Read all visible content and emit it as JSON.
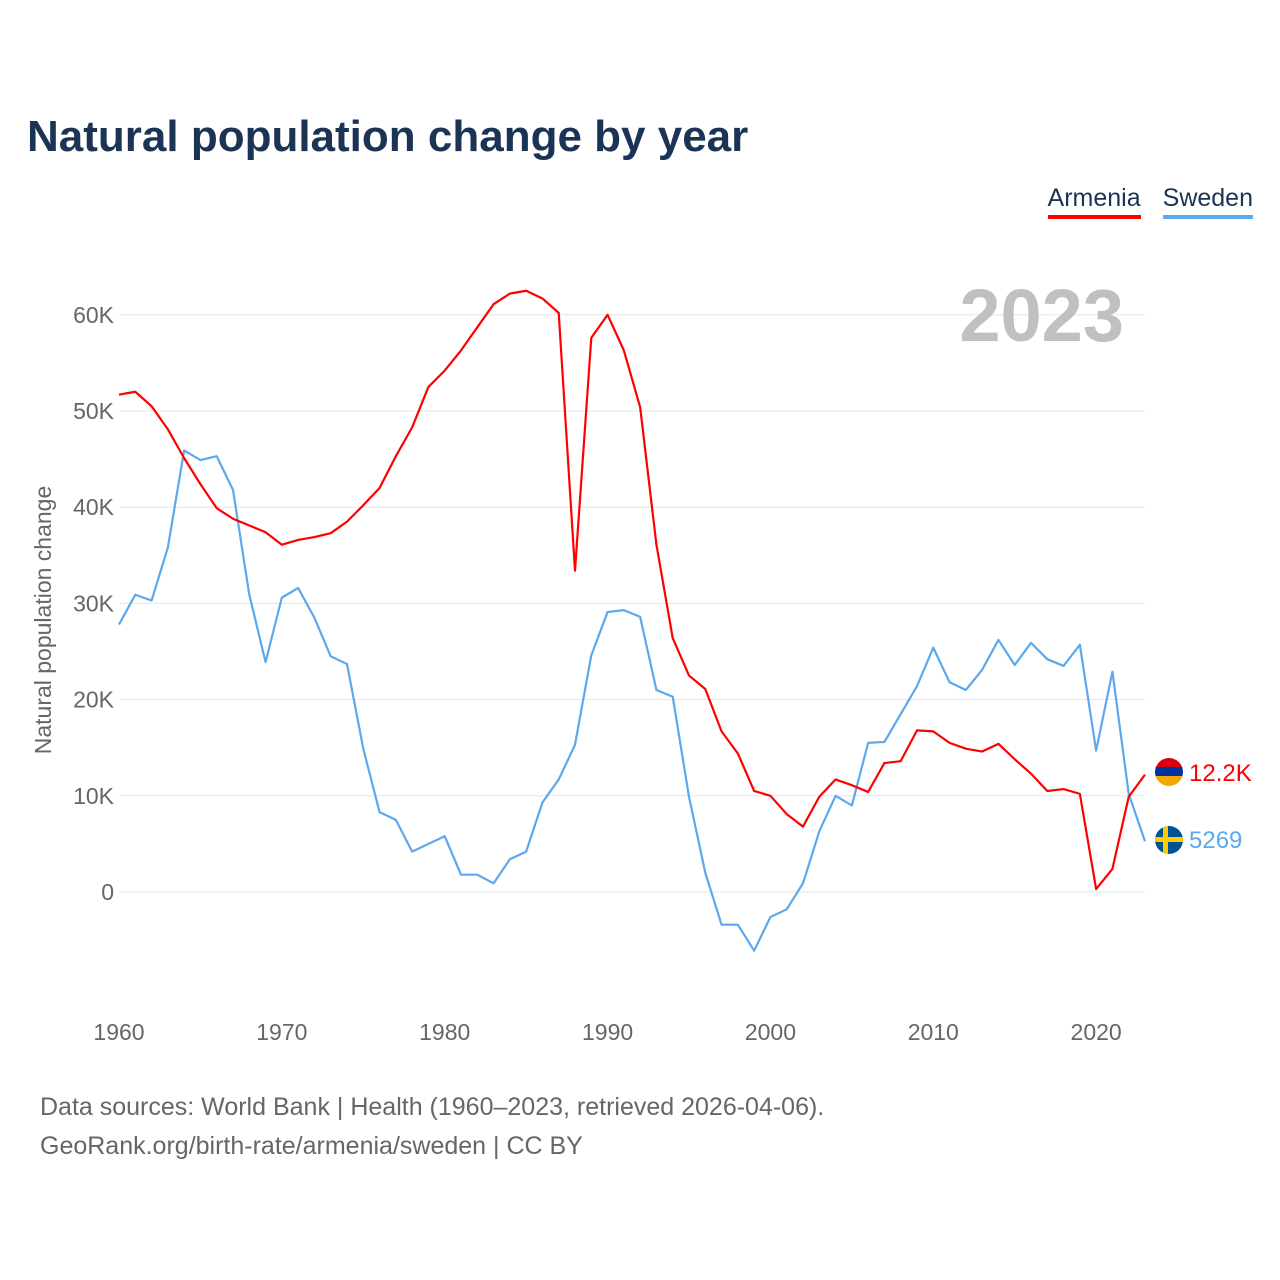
{
  "title": "Natural population change by year",
  "legend": [
    {
      "label": "Armenia",
      "color": "#ff0000"
    },
    {
      "label": "Sweden",
      "color": "#5ba8ee"
    }
  ],
  "year_watermark": "2023",
  "footer": {
    "line1": "Data sources: World Bank | Health (1960–2023, retrieved 2026-04-06).",
    "line2": "GeoRank.org/birth-rate/armenia/sweden | CC BY"
  },
  "chart_data": {
    "type": "line",
    "title": "Natural population change by year",
    "xlabel": "",
    "ylabel": "Natural population change",
    "xlim": [
      1960,
      2023
    ],
    "ylim": [
      -12000,
      65000
    ],
    "grid": true,
    "legend_position": "top-right",
    "x_ticks": [
      1960,
      1970,
      1980,
      1990,
      2000,
      2010,
      2020
    ],
    "x_tick_labels": [
      "1960",
      "1970",
      "1980",
      "1990",
      "2000",
      "2010",
      "2020"
    ],
    "y_ticks": [
      0,
      10000,
      20000,
      30000,
      40000,
      50000,
      60000
    ],
    "y_tick_labels": [
      "0",
      "10K",
      "20K",
      "30K",
      "40K",
      "50K",
      "60K"
    ],
    "x_start": 1960,
    "series": [
      {
        "name": "Armenia",
        "color": "#ff0000",
        "end_label": "12.2K",
        "flag": "armenia-flag",
        "values": [
          51700,
          52000,
          50500,
          48100,
          45100,
          42400,
          39900,
          38800,
          38100,
          37400,
          36100,
          36600,
          36900,
          37300,
          38500,
          40200,
          42000,
          45300,
          48300,
          52500,
          54200,
          56300,
          58700,
          61100,
          62200,
          62500,
          61700,
          60200,
          33400,
          57600,
          60000,
          56300,
          50400,
          36100,
          26400,
          22500,
          21100,
          16700,
          14400,
          10500,
          10000,
          8100,
          6800,
          9900,
          11700,
          11100,
          10400,
          13400,
          13600,
          16800,
          16700,
          15500,
          14900,
          14600,
          15400,
          13800,
          12300,
          10500,
          10700,
          10200,
          300,
          2400,
          9900,
          12200
        ]
      },
      {
        "name": "Sweden",
        "color": "#5ba8ee",
        "end_label": "5269",
        "flag": "sweden-flag",
        "values": [
          27800,
          30900,
          30300,
          35800,
          45900,
          44900,
          45300,
          41800,
          30900,
          23900,
          30600,
          31600,
          28500,
          24500,
          23700,
          14900,
          8300,
          7500,
          4200,
          5000,
          5800,
          1800,
          1800,
          900,
          3400,
          4200,
          9300,
          11700,
          15300,
          24600,
          29100,
          29300,
          28600,
          21000,
          20300,
          9900,
          2000,
          -3400,
          -3400,
          -6100,
          -2600,
          -1800,
          900,
          6300,
          10000,
          9000,
          15500,
          15600,
          18500,
          21400,
          25400,
          21800,
          21000,
          23100,
          26200,
          23600,
          25900,
          24200,
          23500,
          25700,
          14700,
          22900,
          10200,
          5269
        ]
      }
    ]
  }
}
